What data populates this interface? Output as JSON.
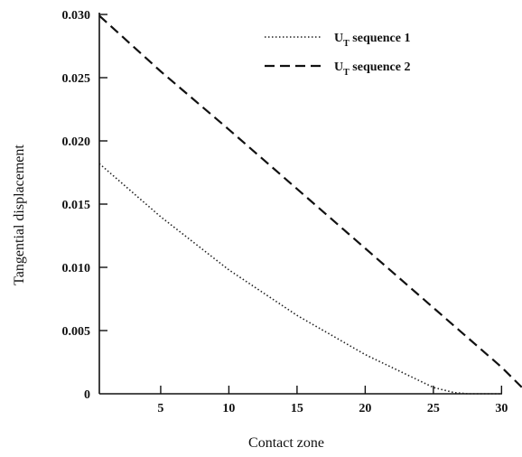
{
  "chart_data": {
    "type": "line",
    "xlabel": "Contact zone",
    "ylabel": "Tangential displacement",
    "xlim": [
      0.5,
      31.5
    ],
    "ylim": [
      0,
      0.03
    ],
    "x_ticks": [
      5,
      10,
      15,
      20,
      25,
      30
    ],
    "x_tick_labels": [
      "5",
      "10",
      "15",
      "20",
      "25",
      "30"
    ],
    "y_ticks": [
      0,
      0.005,
      0.01,
      0.015,
      0.02,
      0.025,
      0.03
    ],
    "y_tick_labels": [
      "0",
      "0.005",
      "0.010",
      "0.015",
      "0.020",
      "0.025",
      "0.030"
    ],
    "grid": false,
    "legend_position": "top-right",
    "series": [
      {
        "name_main": "U",
        "name_sub": "T",
        "name_rest": " sequence 1",
        "style": "dotted",
        "color": "#222222",
        "x": [
          0.5,
          5,
          10,
          15,
          20,
          25,
          26.5,
          27.5,
          28.5,
          30
        ],
        "y": [
          0.0182,
          0.014,
          0.0098,
          0.0062,
          0.0031,
          0.0005,
          0.0001,
          0,
          0,
          0
        ]
      },
      {
        "name_main": "U",
        "name_sub": "T",
        "name_rest": " sequence 2",
        "style": "dashed",
        "color": "#111111",
        "x": [
          0.5,
          5,
          10,
          15,
          20,
          25,
          30,
          31.5
        ],
        "y": [
          0.0299,
          0.0255,
          0.0209,
          0.0162,
          0.0115,
          0.0068,
          0.0021,
          0.0005
        ]
      }
    ]
  }
}
